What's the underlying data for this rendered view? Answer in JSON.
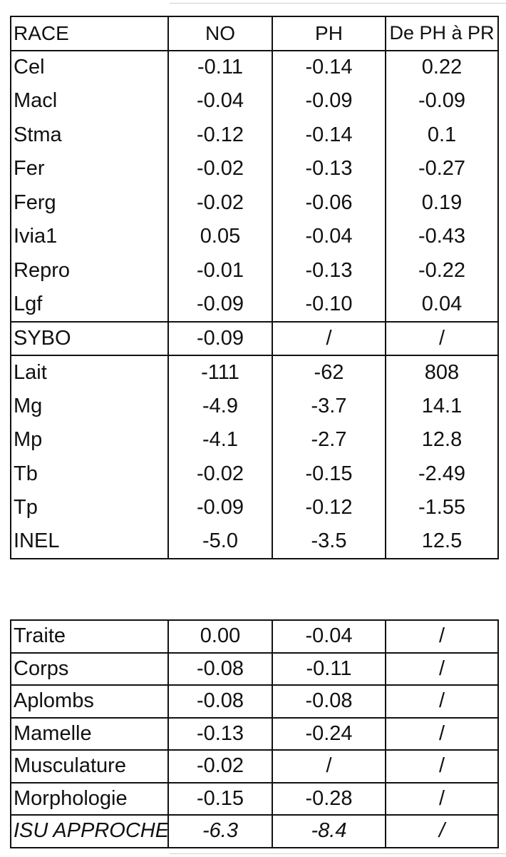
{
  "table1": {
    "header": [
      "RACE",
      "NO",
      "PH",
      "De PH à PR"
    ],
    "rows": [
      [
        "Cel",
        "-0.11",
        "-0.14",
        "0.22"
      ],
      [
        "Macl",
        "-0.04",
        "-0.09",
        "-0.09"
      ],
      [
        "Stma",
        "-0.12",
        "-0.14",
        "0.1"
      ],
      [
        "Fer",
        "-0.02",
        "-0.13",
        "-0.27"
      ],
      [
        "Ferg",
        "-0.02",
        "-0.06",
        "0.19"
      ],
      [
        "Ivia1",
        "0.05",
        "-0.04",
        "-0.43"
      ],
      [
        "Repro",
        "-0.01",
        "-0.13",
        "-0.22"
      ],
      [
        "Lgf",
        "-0.09",
        "-0.10",
        "0.04"
      ],
      [
        "SYBO",
        "-0.09",
        "/",
        "/"
      ],
      [
        "Lait",
        "-111",
        "-62",
        "808"
      ],
      [
        "Mg",
        "-4.9",
        "-3.7",
        "14.1"
      ],
      [
        "Mp",
        "-4.1",
        "-2.7",
        "12.8"
      ],
      [
        "Tb",
        "-0.02",
        "-0.15",
        "-2.49"
      ],
      [
        "Tp",
        "-0.09",
        "-0.12",
        "-1.55"
      ],
      [
        "INEL",
        "-5.0",
        "-3.5",
        "12.5"
      ]
    ]
  },
  "table2": {
    "rows": [
      [
        "Traite",
        "0.00",
        "-0.04",
        "/"
      ],
      [
        "Corps",
        "-0.08",
        "-0.11",
        "/"
      ],
      [
        "Aplombs",
        "-0.08",
        "-0.08",
        "/"
      ],
      [
        "Mamelle",
        "-0.13",
        "-0.24",
        "/"
      ],
      [
        "Musculature",
        "-0.02",
        "/",
        "/"
      ],
      [
        "Morphologie",
        "-0.15",
        "-0.28",
        "/"
      ],
      [
        "ISU APPROCHE",
        "-6.3",
        "-8.4",
        "/"
      ]
    ]
  }
}
